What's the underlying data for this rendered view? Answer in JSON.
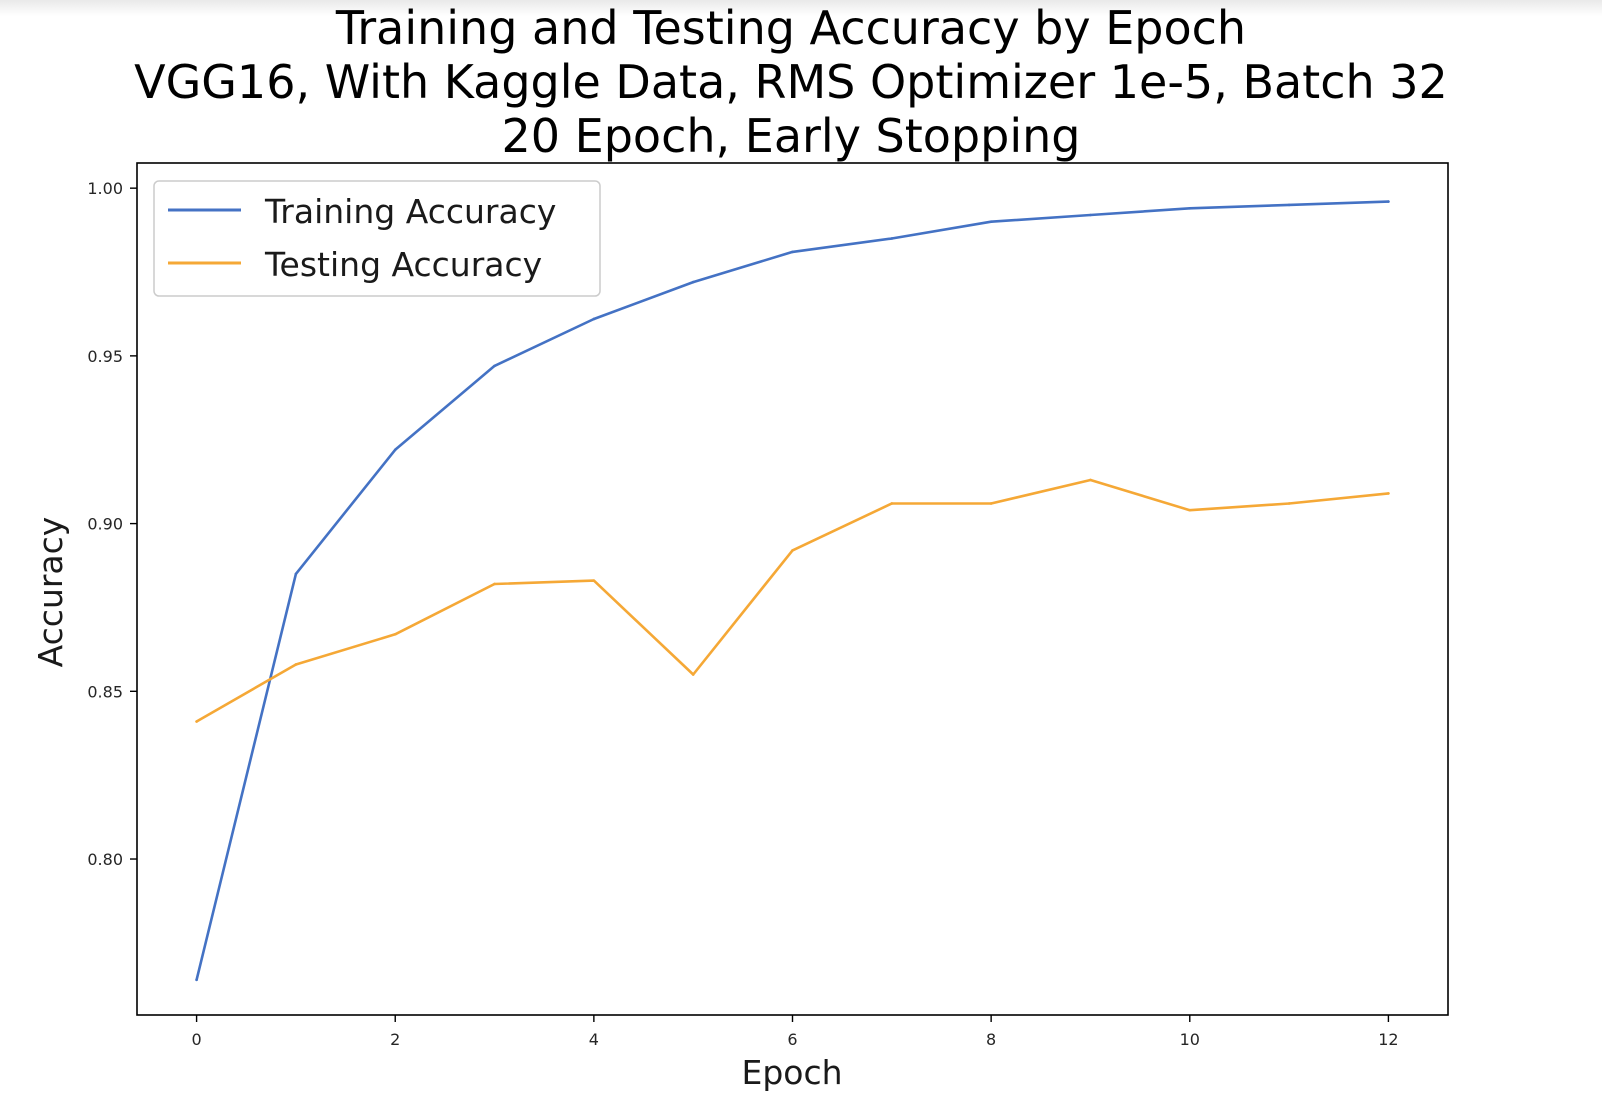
{
  "chart_data": {
    "type": "line",
    "title_lines": [
      "Training and Testing Accuracy by Epoch",
      "VGG16, With Kaggle Data, RMS Optimizer 1e-5, Batch 32",
      "20 Epoch, Early Stopping"
    ],
    "xlabel": "Epoch",
    "ylabel": "Accuracy",
    "xlim": [
      -0.6,
      12.6
    ],
    "ylim": [
      0.7535,
      1.0075
    ],
    "xticks": [
      0,
      2,
      4,
      6,
      8,
      10,
      12
    ],
    "xtick_labels": [
      "0",
      "2",
      "4",
      "6",
      "8",
      "10",
      "12"
    ],
    "yticks": [
      0.8,
      0.85,
      0.9,
      0.95,
      1.0
    ],
    "ytick_labels": [
      "0.80",
      "0.85",
      "0.90",
      "0.95",
      "1.00"
    ],
    "grid": false,
    "legend_position": "upper-left",
    "x": [
      0,
      1,
      2,
      3,
      4,
      5,
      6,
      7,
      8,
      9,
      10,
      11,
      12
    ],
    "series": [
      {
        "name": "Training Accuracy",
        "color": "#4472c4",
        "values": [
          0.764,
          0.885,
          0.922,
          0.947,
          0.961,
          0.972,
          0.981,
          0.985,
          0.99,
          0.992,
          0.994,
          0.995,
          0.996
        ]
      },
      {
        "name": "Testing Accuracy",
        "color": "#f5a836",
        "values": [
          0.841,
          0.858,
          0.867,
          0.882,
          0.883,
          0.855,
          0.892,
          0.906,
          0.906,
          0.913,
          0.904,
          0.906,
          0.909
        ]
      }
    ]
  }
}
